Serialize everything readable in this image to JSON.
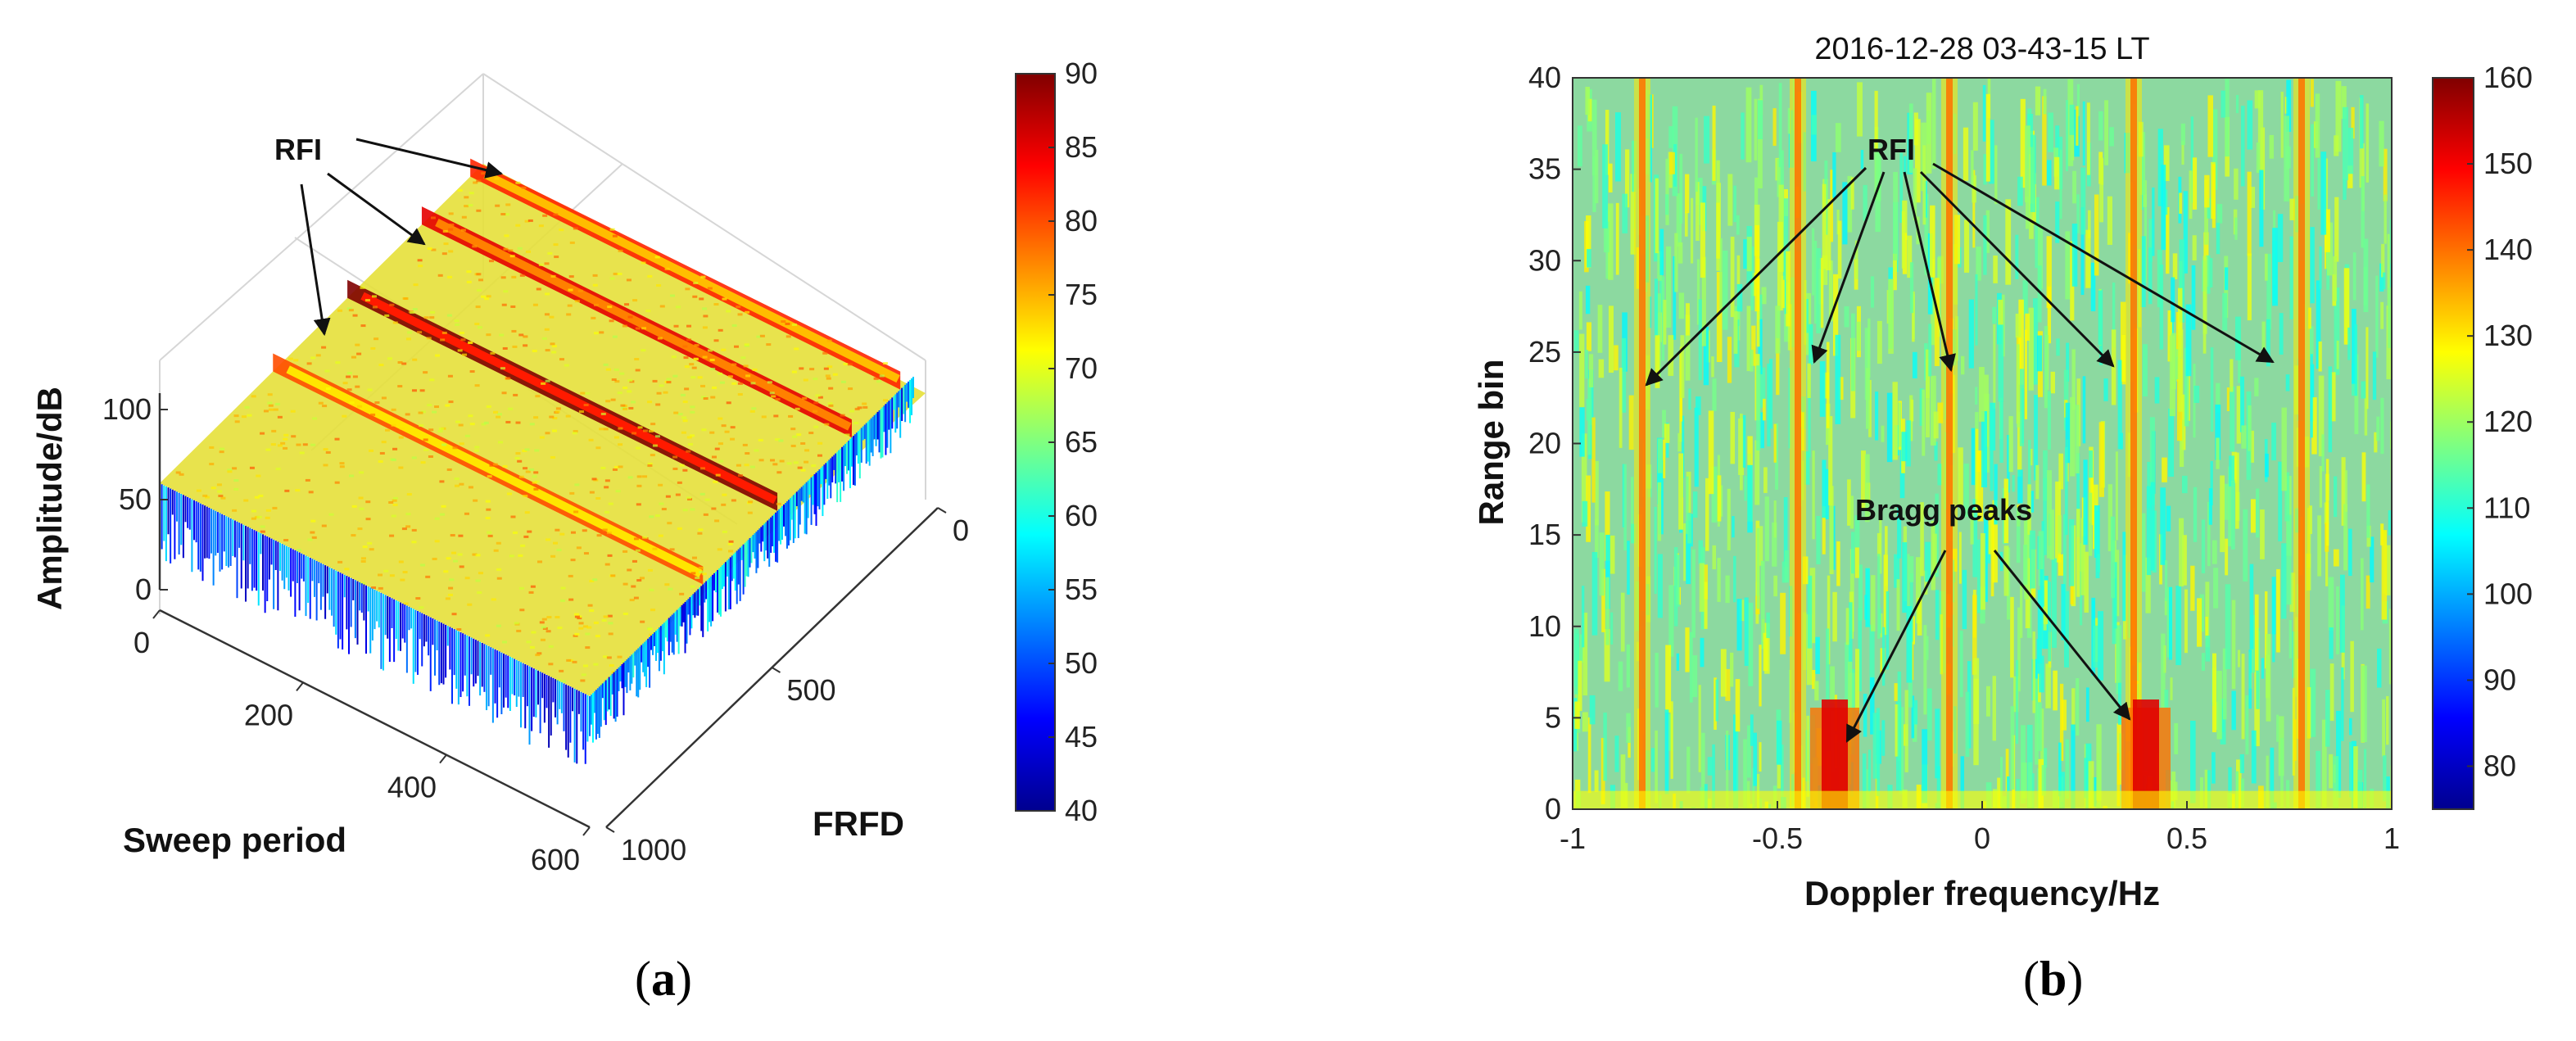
{
  "chart_data": [
    {
      "type": "surface3d",
      "panel_label": "a",
      "title": "",
      "xlabel": "Sweep period",
      "ylabel": "FRFD",
      "zlabel": "Amplitude/dB",
      "xlim": [
        0,
        600
      ],
      "ylim": [
        0,
        1000
      ],
      "zlim": [
        0,
        120
      ],
      "xticks": [
        "0",
        "200",
        "400",
        "600"
      ],
      "yticks": [
        "0",
        "500",
        "1000"
      ],
      "zticks": [
        "0",
        "50",
        "100"
      ],
      "colorbar": {
        "min": 40,
        "max": 90,
        "ticks": [
          "40",
          "45",
          "50",
          "55",
          "60",
          "65",
          "70",
          "75",
          "80",
          "85",
          "90"
        ]
      },
      "surface_base_level_db": 70,
      "rfi_ridges_frfd": [
        40,
        190,
        420,
        650
      ],
      "rfi_peak_db": [
        82,
        85,
        90,
        80
      ],
      "annotations": [
        {
          "text": "RFI",
          "arrows": 3
        }
      ]
    },
    {
      "type": "heatmap",
      "panel_label": "b",
      "title": "2016-12-28 03-43-15 LT",
      "xlabel": "Doppler frequency/Hz",
      "ylabel": "Range bin",
      "xlim": [
        -1,
        1
      ],
      "ylim": [
        0,
        40
      ],
      "xticks": [
        "-1",
        "-0.5",
        "0",
        "0.5",
        "1"
      ],
      "yticks": [
        "0",
        "5",
        "10",
        "15",
        "20",
        "25",
        "30",
        "35",
        "40"
      ],
      "colorbar": {
        "min": 75,
        "max": 160,
        "ticks": [
          "80",
          "90",
          "100",
          "110",
          "120",
          "130",
          "140",
          "150",
          "160"
        ]
      },
      "background_level": 120,
      "rfi_lines_hz": [
        -0.83,
        -0.45,
        -0.08,
        0.37,
        0.78
      ],
      "rfi_level": 140,
      "bragg_peaks_hz": [
        -0.36,
        0.4
      ],
      "bragg_peak_level": 152,
      "bragg_peak_range_bins": [
        0,
        6
      ],
      "annotations": [
        {
          "text": "RFI",
          "arrows": 5
        },
        {
          "text": "Bragg peaks",
          "arrows": 2
        }
      ]
    }
  ]
}
